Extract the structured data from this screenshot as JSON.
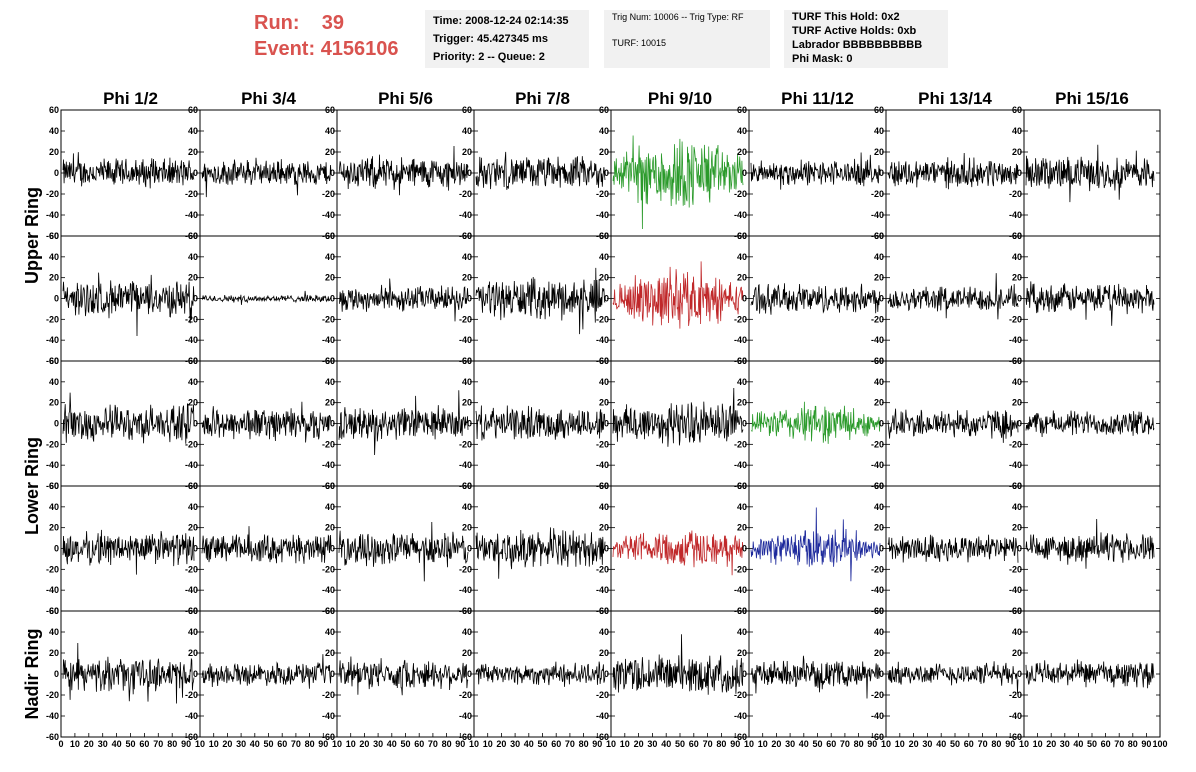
{
  "header": {
    "run_label": "Run:",
    "run_value": "39",
    "event_label": "Event:",
    "event_value": "4156106",
    "time": "Time: 2008-12-24 02:14:35",
    "trigger": "Trigger: 45.427345 ms",
    "priority": "Priority: 2 -- Queue: 2",
    "trig_num": "Trig Num: 10006 -- Trig Type: RF",
    "turf": "TURF: 10015",
    "turf_hold": "TURF This Hold: 0x2",
    "turf_active": "TURF Active Holds: 0xb",
    "labrador": "Labrador BBBBBBBBBB",
    "phi_mask": "Phi Mask: 0"
  },
  "columns": [
    "Phi 1/2",
    "Phi 3/4",
    "Phi 5/6",
    "Phi 7/8",
    "Phi 9/10",
    "Phi 11/12",
    "Phi 13/14",
    "Phi 15/16"
  ],
  "ring_labels": [
    "Upper Ring",
    "Lower Ring",
    "Nadir Ring"
  ],
  "colors": {
    "green": "#2a9a2a",
    "red": "#c0282a",
    "blue": "#1e2a9c",
    "black": "#000000",
    "accent": "#d9534f"
  },
  "chart_data": {
    "type": "line",
    "ylim": [
      -60,
      60
    ],
    "xlim": [
      0,
      100
    ],
    "y_ticks": [
      "60",
      "40",
      "20",
      "0",
      "-20",
      "-40",
      "-60"
    ],
    "x_ticks": [
      "0",
      "10",
      "20",
      "30",
      "40",
      "50",
      "60",
      "70",
      "80",
      "90",
      "100"
    ],
    "x_ticks_shown": [
      "0",
      "10",
      "20",
      "30",
      "40",
      "50",
      "60",
      "70",
      "80",
      "90",
      "10",
      "10",
      "20",
      "30",
      "40",
      "50",
      "60",
      "70",
      "80",
      "90",
      "10",
      "10",
      "20",
      "30",
      "40",
      "50",
      "60",
      "70",
      "80",
      "90",
      "10",
      "10",
      "20",
      "30",
      "40",
      "50",
      "60",
      "70",
      "80",
      "90",
      "10",
      "10",
      "20",
      "30",
      "40",
      "50",
      "60",
      "70",
      "80",
      "90",
      "10",
      "10",
      "20",
      "30",
      "40",
      "50",
      "60",
      "70",
      "80",
      "90",
      "10",
      "10",
      "20",
      "30",
      "40",
      "50",
      "60",
      "70",
      "80",
      "90",
      "10",
      "10",
      "20",
      "30",
      "40",
      "50",
      "60",
      "70",
      "80",
      "90",
      "100"
    ],
    "panels": [
      [
        {
          "amp": 16,
          "color": "black"
        },
        {
          "amp": 14,
          "color": "black"
        },
        {
          "amp": 18,
          "color": "black"
        },
        {
          "amp": 18,
          "color": "black"
        },
        {
          "amp": 30,
          "color": "green"
        },
        {
          "amp": 14,
          "color": "black"
        },
        {
          "amp": 16,
          "color": "black"
        },
        {
          "amp": 18,
          "color": "black"
        }
      ],
      [
        {
          "amp": 20,
          "color": "black"
        },
        {
          "amp": 4,
          "color": "black"
        },
        {
          "amp": 14,
          "color": "black"
        },
        {
          "amp": 22,
          "color": "black"
        },
        {
          "amp": 24,
          "color": "red"
        },
        {
          "amp": 16,
          "color": "black"
        },
        {
          "amp": 14,
          "color": "black"
        },
        {
          "amp": 16,
          "color": "black"
        }
      ],
      [
        {
          "amp": 20,
          "color": "black"
        },
        {
          "amp": 18,
          "color": "black"
        },
        {
          "amp": 18,
          "color": "black"
        },
        {
          "amp": 18,
          "color": "black"
        },
        {
          "amp": 24,
          "color": "black"
        },
        {
          "amp": 16,
          "color": "green"
        },
        {
          "amp": 16,
          "color": "black"
        },
        {
          "amp": 14,
          "color": "black"
        }
      ],
      [
        {
          "amp": 18,
          "color": "black"
        },
        {
          "amp": 16,
          "color": "black"
        },
        {
          "amp": 18,
          "color": "black"
        },
        {
          "amp": 20,
          "color": "black"
        },
        {
          "amp": 16,
          "color": "red"
        },
        {
          "amp": 16,
          "color": "blue"
        },
        {
          "amp": 16,
          "color": "black"
        },
        {
          "amp": 16,
          "color": "black"
        }
      ],
      [
        {
          "amp": 18,
          "color": "black"
        },
        {
          "amp": 12,
          "color": "black"
        },
        {
          "amp": 16,
          "color": "black"
        },
        {
          "amp": 12,
          "color": "black"
        },
        {
          "amp": 22,
          "color": "black"
        },
        {
          "amp": 14,
          "color": "black"
        },
        {
          "amp": 12,
          "color": "black"
        },
        {
          "amp": 14,
          "color": "black"
        }
      ]
    ]
  }
}
